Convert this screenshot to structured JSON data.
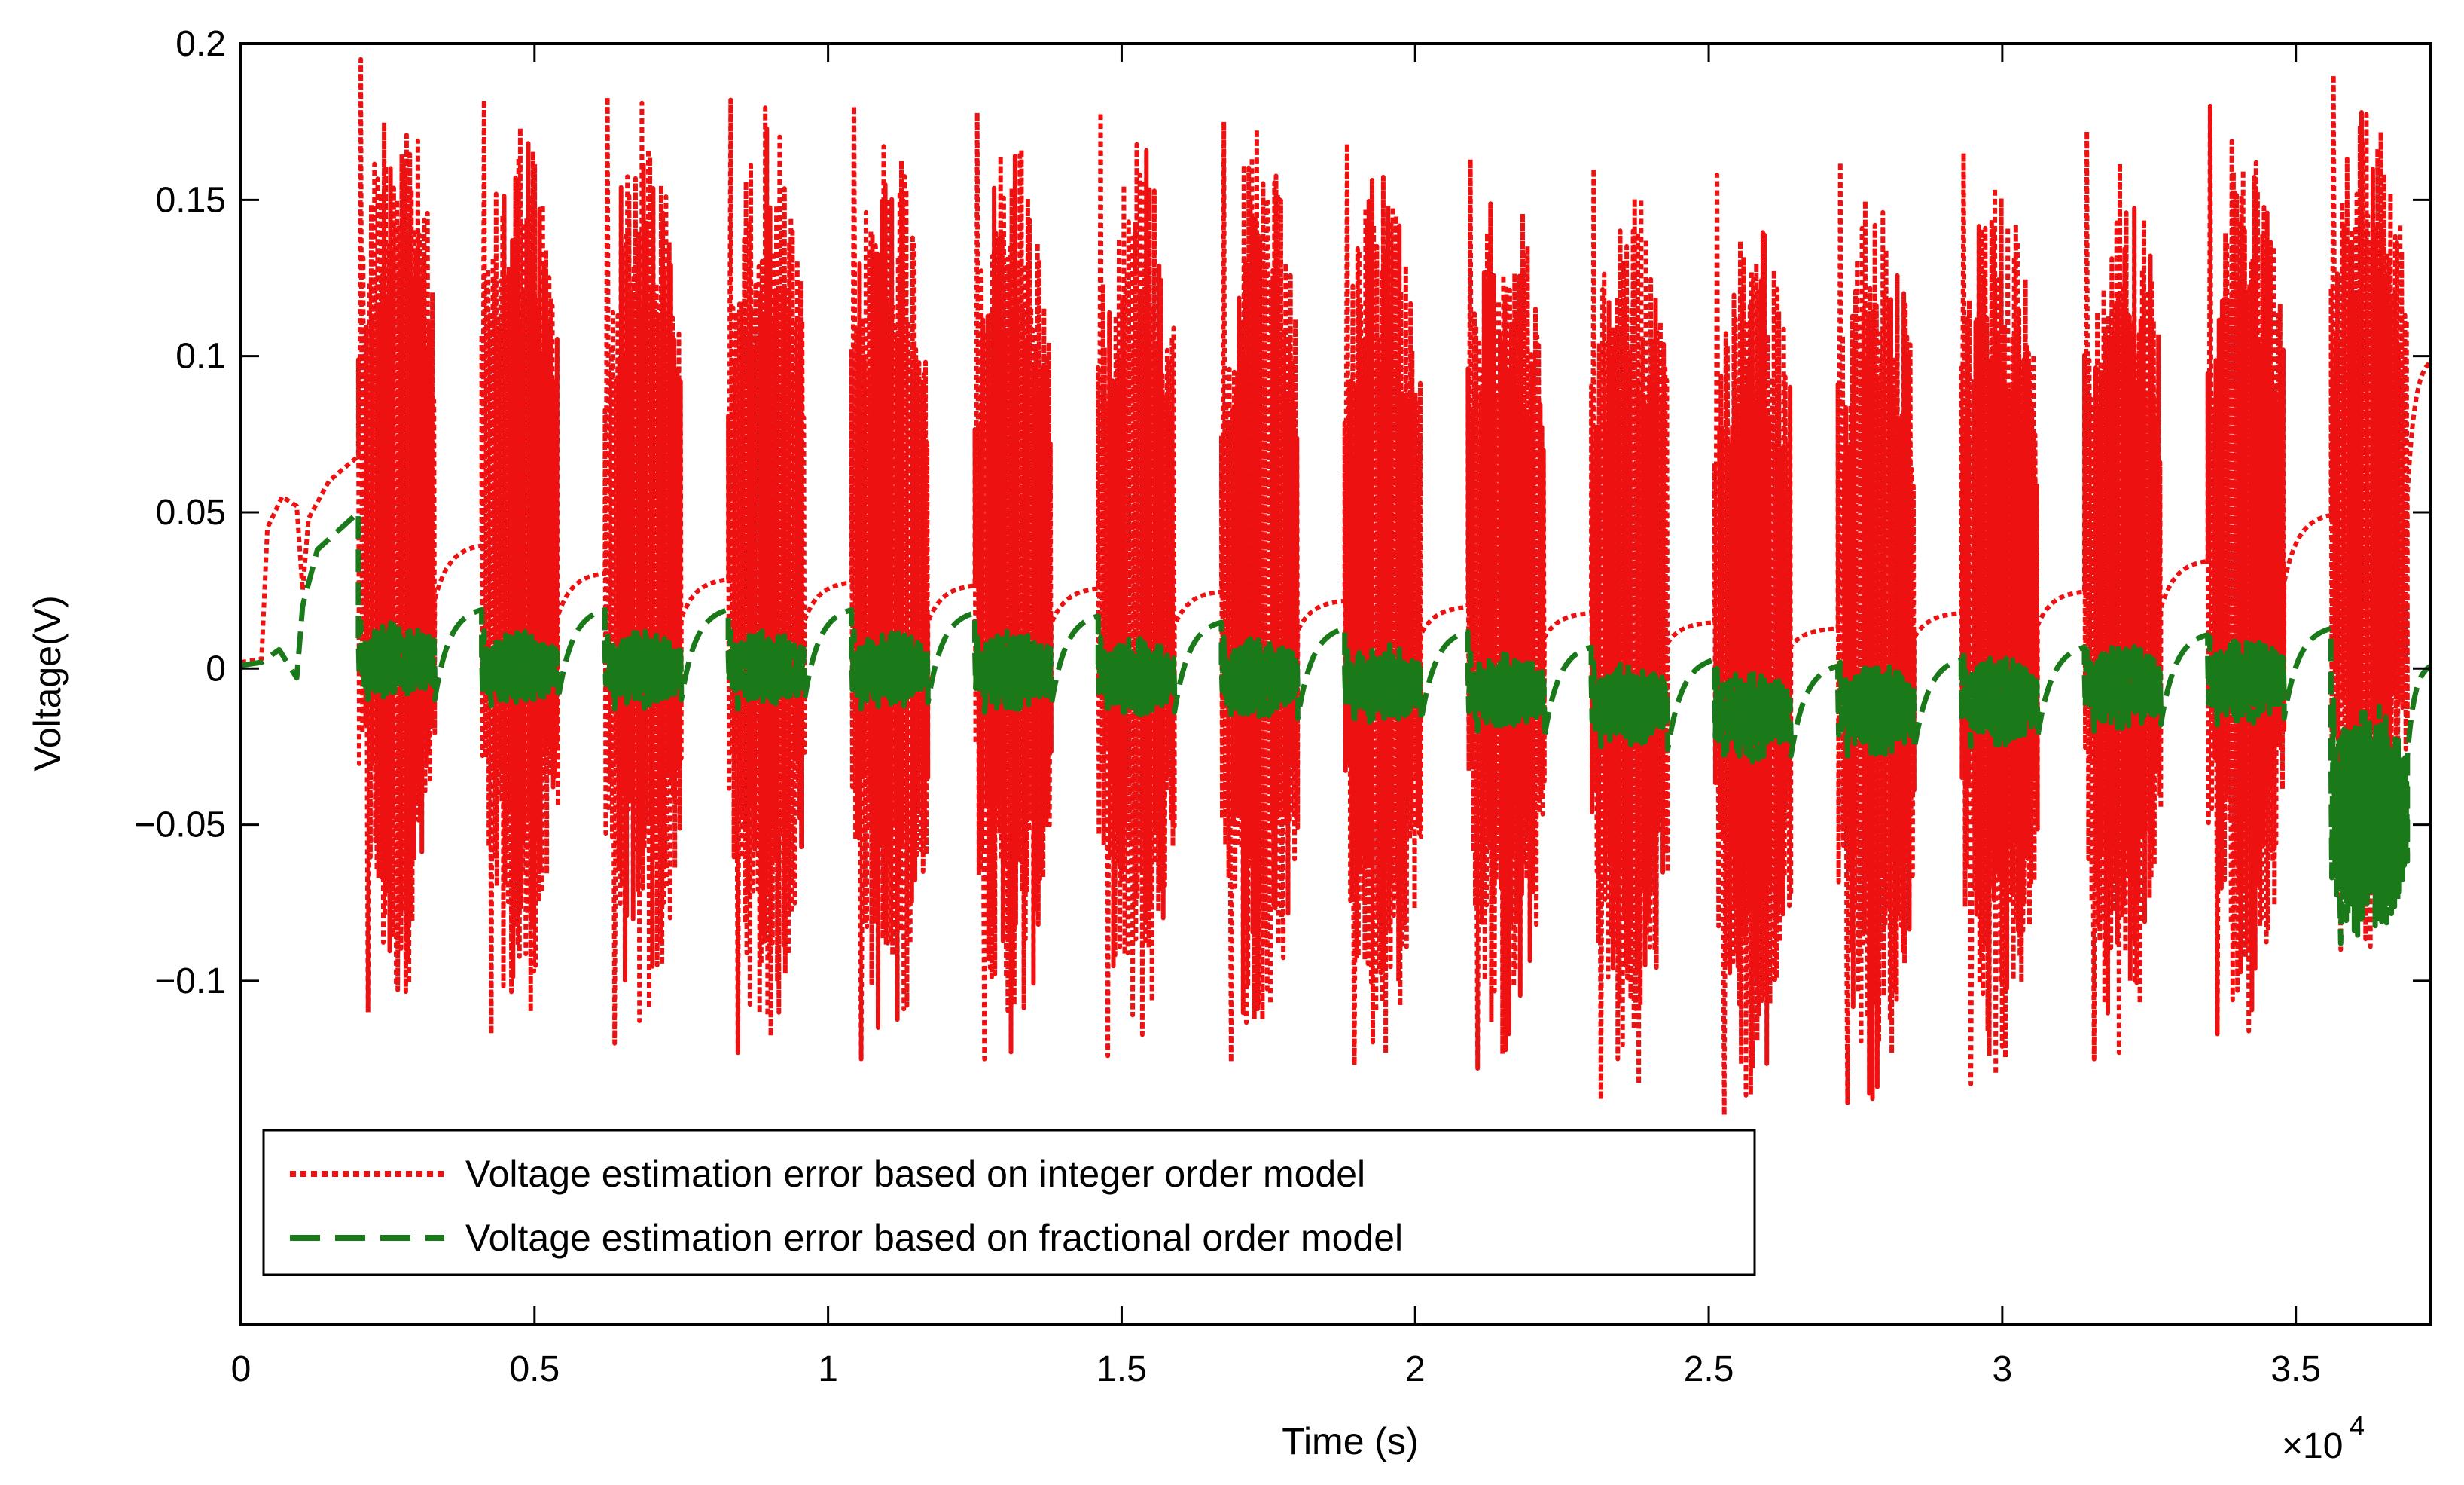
{
  "chart_data": {
    "type": "line",
    "title": "",
    "xlabel": "Time (s)",
    "ylabel": "Voltage(V)",
    "x_exponent_label": "×10",
    "x_exponent_power": "4",
    "xlim": [
      0,
      37300
    ],
    "ylim": [
      -0.21,
      0.2
    ],
    "x_ticks": [
      0,
      5000,
      10000,
      15000,
      20000,
      25000,
      30000,
      35000
    ],
    "x_tick_labels": [
      "0",
      "0.5",
      "1",
      "1.5",
      "2",
      "2.5",
      "3",
      "3.5"
    ],
    "y_ticks": [
      -0.1,
      -0.05,
      0,
      0.05,
      0.1,
      0.15,
      0.2
    ],
    "y_tick_labels": [
      "−0.1",
      "−0.05",
      "0",
      "0.05",
      "0.1",
      "0.15",
      "0.2"
    ],
    "grid": false,
    "legend_position": "bottom-left",
    "burst_starts": [
      2000,
      4100,
      6200,
      8300,
      10400,
      12500,
      14600,
      16700,
      18800,
      20900,
      23000,
      25100,
      27200,
      29300,
      31400,
      33500,
      35600
    ],
    "burst_duration": 1300,
    "series": [
      {
        "name": "Voltage estimation error based on integer order model",
        "color": "#ee1111",
        "style": "dotted",
        "baseline_peaks": [
          0.068,
          0.04,
          0.031,
          0.029,
          0.028,
          0.027,
          0.026,
          0.025,
          0.022,
          0.02,
          0.018,
          0.015,
          0.013,
          0.018,
          0.025,
          0.035,
          0.05,
          0.1
        ],
        "burst_max": [
          0.195,
          0.182,
          0.183,
          0.182,
          0.18,
          0.178,
          0.178,
          0.175,
          0.168,
          0.163,
          0.16,
          0.158,
          0.162,
          0.165,
          0.172,
          0.18,
          0.19
        ],
        "burst_min": [
          -0.11,
          -0.117,
          -0.12,
          -0.123,
          -0.125,
          -0.125,
          -0.124,
          -0.126,
          -0.127,
          -0.128,
          -0.138,
          -0.143,
          -0.139,
          -0.133,
          -0.125,
          -0.117,
          -0.09
        ]
      },
      {
        "name": "Voltage estimation error based on fractional order model",
        "color": "#1a7a1a",
        "style": "dashed",
        "baseline_peaks": [
          0.05,
          0.02,
          0.02,
          0.02,
          0.02,
          0.019,
          0.018,
          0.016,
          0.014,
          0.013,
          0.008,
          0.004,
          0.002,
          0.004,
          0.008,
          0.012,
          0.014,
          0.002
        ],
        "burst_max": [
          0.015,
          0.012,
          0.012,
          0.012,
          0.012,
          0.012,
          0.01,
          0.01,
          0.008,
          0.005,
          0.002,
          0.0,
          0.002,
          0.005,
          0.008,
          0.01,
          -0.01
        ],
        "burst_min": [
          -0.01,
          -0.012,
          -0.013,
          -0.013,
          -0.013,
          -0.014,
          -0.015,
          -0.016,
          -0.018,
          -0.02,
          -0.025,
          -0.03,
          -0.028,
          -0.025,
          -0.02,
          -0.018,
          -0.088
        ]
      }
    ]
  },
  "legend": {
    "items": [
      "Voltage estimation error based on integer order model",
      "Voltage estimation error based on fractional order model"
    ]
  }
}
